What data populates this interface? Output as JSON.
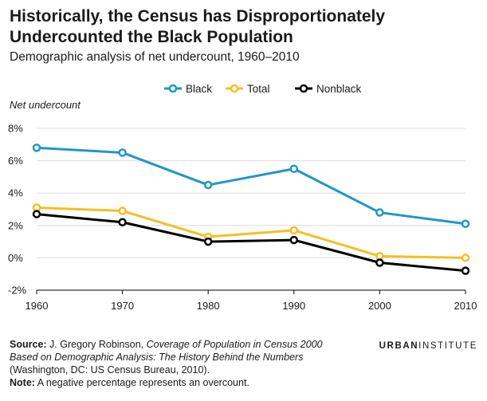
{
  "header": {
    "title": "Historically, the Census has Disproportionately Undercounted the Black Population",
    "subtitle": "Demographic analysis of net undercount, 1960–2010"
  },
  "chart_data": {
    "type": "line",
    "ylabel": "Net undercount",
    "x": [
      1960,
      1970,
      1980,
      1990,
      2000,
      2010
    ],
    "x_tick_labels": [
      "1960",
      "1970",
      "1980",
      "1990",
      "2000",
      "2010"
    ],
    "y_ticks": [
      -2,
      0,
      2,
      4,
      6,
      8
    ],
    "y_tick_labels": [
      "-2%",
      "0%",
      "2%",
      "4%",
      "6%",
      "8%"
    ],
    "ylim": [
      -2,
      8
    ],
    "grid": "horizontal",
    "legend_position": "top-center",
    "series": [
      {
        "name": "Black",
        "color": "#1f97c9",
        "values": [
          6.8,
          6.5,
          4.5,
          5.5,
          2.8,
          2.1
        ]
      },
      {
        "name": "Total",
        "color": "#f5bf24",
        "values": [
          3.1,
          2.9,
          1.3,
          1.7,
          0.1,
          0.0
        ]
      },
      {
        "name": "Nonblack",
        "color": "#000000",
        "values": [
          2.7,
          2.2,
          1.0,
          1.1,
          -0.3,
          -0.8
        ]
      }
    ]
  },
  "footer": {
    "source_label": "Source:",
    "source_author": "J. Gregory Robinson,",
    "source_title": "Coverage of Population in Census 2000 Based on Demographic Analysis: The History Behind the Numbers",
    "source_pub": "(Washington, DC: US Census Bureau, 2010).",
    "note_label": "Note:",
    "note_text": "A negative percentage represents an overcount.",
    "logo_bold": "URBAN",
    "logo_thin": "INSTITUTE"
  }
}
